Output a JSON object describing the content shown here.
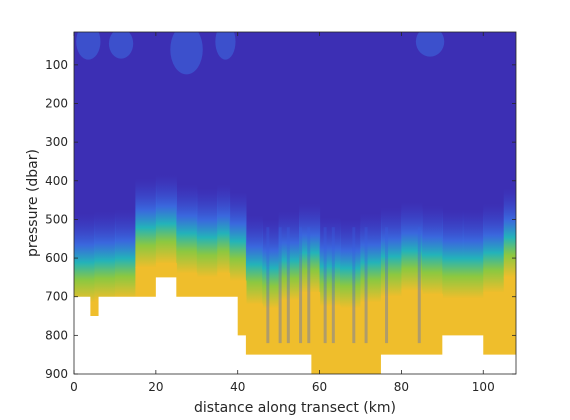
{
  "chart_data": {
    "type": "heatmap",
    "title": "",
    "xlabel": "distance along transect (km)",
    "ylabel": "pressure (dbar)",
    "xlim": [
      0,
      108
    ],
    "ylim": [
      900,
      15
    ],
    "y_reversed": true,
    "grid": false,
    "legend": "none",
    "colormap": "parula",
    "colors": {
      "deep_blue": "#3c2fb4",
      "blue": "#3a5ee0",
      "cyan": "#25b6b6",
      "green": "#9bc93a",
      "yellow": "#efbe2c",
      "missing": "#ffffff"
    },
    "x_ticks": [
      0,
      20,
      40,
      60,
      80,
      100
    ],
    "x_tick_labels": [
      "0",
      "20",
      "40",
      "60",
      "80",
      "100"
    ],
    "y_ticks": [
      100,
      200,
      300,
      400,
      500,
      600,
      700,
      800,
      900
    ],
    "y_tick_labels": [
      "100",
      "200",
      "300",
      "400",
      "500",
      "600",
      "700",
      "800",
      "900"
    ],
    "transition_depth_profile": {
      "x": [
        0,
        5,
        10,
        15,
        20,
        25,
        30,
        35,
        38,
        42,
        46,
        50,
        55,
        60,
        65,
        70,
        75,
        80,
        85,
        90,
        95,
        100,
        105,
        108
      ],
      "depth": [
        620,
        590,
        610,
        580,
        450,
        560,
        500,
        580,
        480,
        620,
        600,
        640,
        560,
        600,
        630,
        610,
        600,
        580,
        570,
        600,
        590,
        600,
        560,
        520
      ]
    },
    "bottom_mask": {
      "x": [
        0,
        4,
        4,
        6,
        6,
        20,
        20,
        25,
        25,
        40,
        40,
        42,
        42,
        58,
        58,
        75,
        75,
        90,
        90,
        100,
        100,
        108
      ],
      "depth": [
        700,
        700,
        750,
        750,
        700,
        700,
        650,
        650,
        700,
        700,
        800,
        800,
        850,
        850,
        900,
        900,
        850,
        850,
        800,
        800,
        850,
        850
      ]
    }
  }
}
